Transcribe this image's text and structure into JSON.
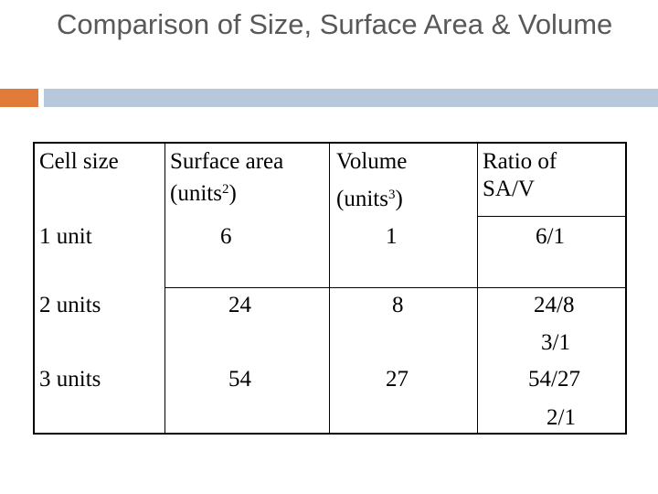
{
  "slide": {
    "title": "Comparison of Size, Surface Area & Volume"
  },
  "table": {
    "headers": {
      "cell_size": "Cell size",
      "surface_area_line1": "Surface area",
      "surface_area_line2_pre": "(units",
      "surface_area_sup": "2",
      "surface_area_line2_post": ")",
      "volume_line1": "Volume",
      "volume_line2_pre": "(units",
      "volume_sup": "3",
      "volume_line2_post": ")",
      "ratio_line1": "Ratio of",
      "ratio_line2": "SA/V"
    },
    "rows": [
      {
        "size": "1 unit",
        "surface_area": "6",
        "volume": "1",
        "ratio": "6/1"
      },
      {
        "size": "2 units",
        "surface_area": "24",
        "volume": "8",
        "ratio": "24/8",
        "ratio_simplified": "3/1"
      },
      {
        "size": "3 units",
        "surface_area": "54",
        "volume": "27",
        "ratio": "54/27",
        "ratio_simplified": "2/1"
      }
    ]
  },
  "colors": {
    "title_text": "#595959",
    "accent_orange": "#e07b39",
    "accent_blue": "#b7c8dc",
    "grid_lines": "#000000"
  }
}
